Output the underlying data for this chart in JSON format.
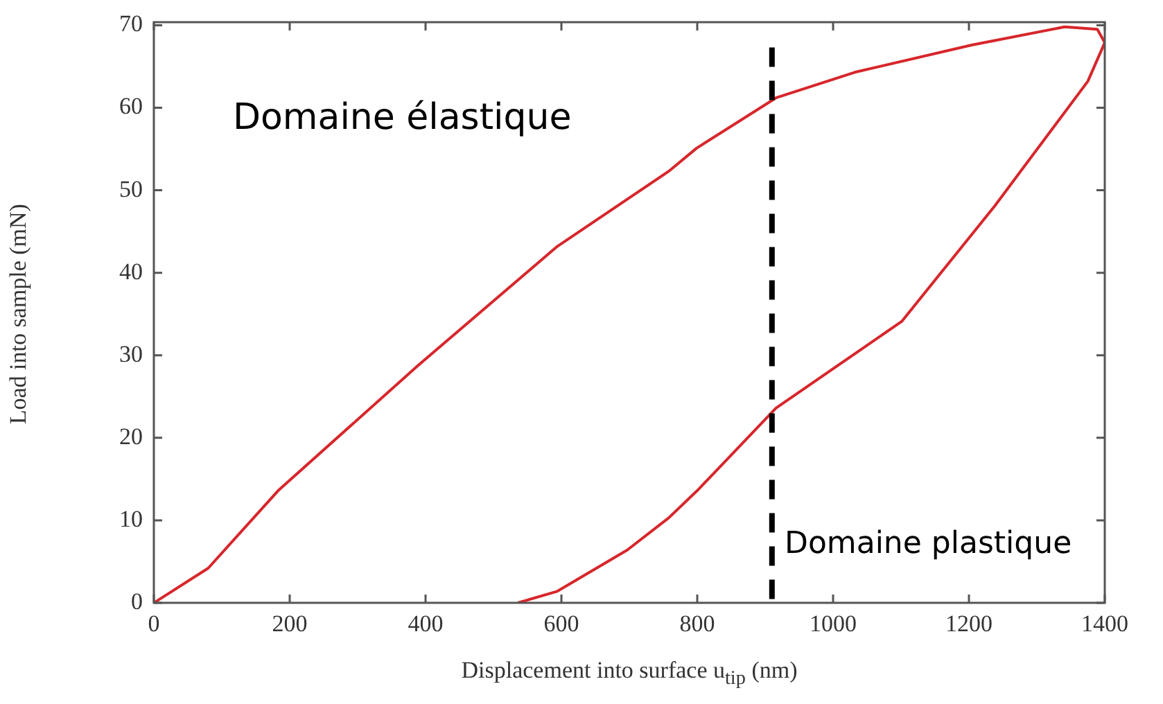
{
  "chart_data": {
    "type": "line",
    "xlabel": "Displacement into surface u$_{tip}$ (nm)",
    "ylabel": "Load into sample (mN)",
    "annotations": [
      "Domaine élastique",
      "Domaine plastique"
    ],
    "series": [
      {
        "color": "#d7262b",
        "x": [
          0,
          80,
          183,
          388,
          594,
          758,
          799,
          916,
          1032,
          1204,
          1341,
          1389,
          1400
        ],
        "values": [
          0,
          4.2,
          13.6,
          28.7,
          43.2,
          52.3,
          55.1,
          61.2,
          64.3,
          67.6,
          69.8,
          69.5,
          67.9
        ]
      },
      {
        "color": "#d7262b",
        "x": [
          1400,
          1375,
          1238,
          1101,
          916,
          800,
          758,
          697,
          594,
          536
        ],
        "values": [
          67.9,
          63.2,
          48.1,
          34.1,
          23.6,
          13.6,
          10.3,
          6.4,
          1.4,
          0
        ]
      }
    ],
    "xlim": [
      0,
      1400
    ],
    "xticks": [
      0,
      200,
      400,
      600,
      800,
      1000,
      1200,
      1400
    ],
    "ylim": [
      0,
      70
    ],
    "yticks": [
      0,
      10,
      20,
      30,
      40,
      50,
      60,
      70
    ],
    "ref_lines": [
      {
        "axis": "x",
        "value": 910,
        "color": "#000000",
        "line_style": "dashed"
      }
    ],
    "grid": false,
    "legend": false,
    "marker": "none",
    "line_style": "solid"
  }
}
